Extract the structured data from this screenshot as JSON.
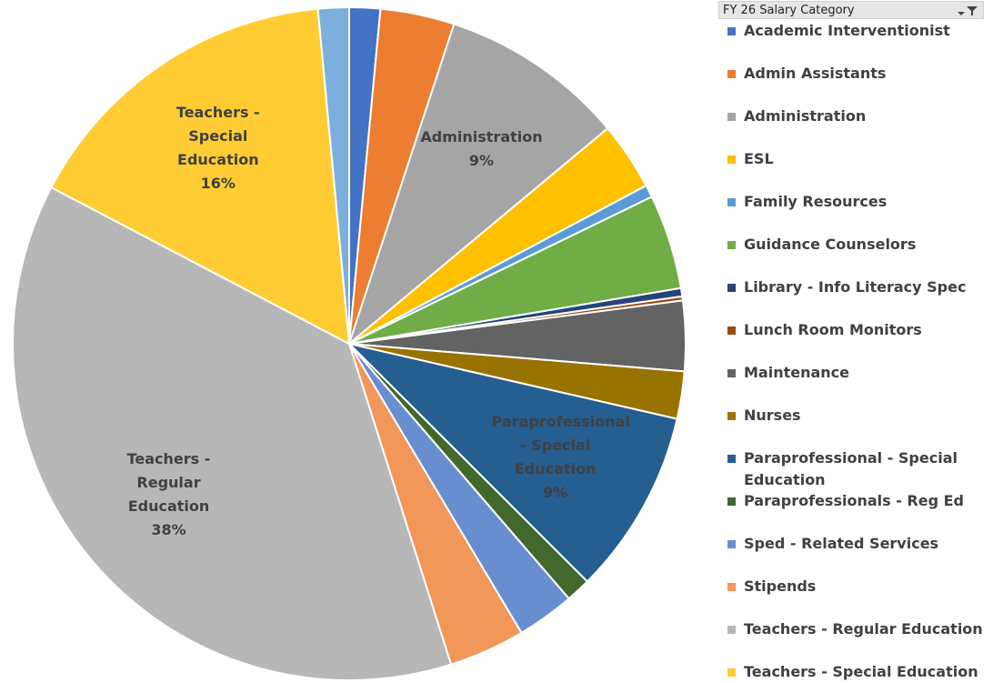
{
  "chart_data": {
    "type": "pie",
    "legend_title": "FY 26 Salary Category",
    "categories": [
      "Academic Interventionist",
      "Admin Assistants",
      "Administration",
      "ESL",
      "Family Resources",
      "Guidance Counselors",
      "Library -  Info Literacy Spec",
      "Lunch Room Monitors",
      "Maintenance",
      "Nurses",
      "Paraprofessional - Special Education",
      "Paraprofessionals - Reg Ed",
      "Sped - Related Services",
      "Stipends",
      "Teachers - Regular Education",
      "Teachers - Special Education",
      null
    ],
    "values": [
      1.5,
      3.6,
      9,
      3.3,
      0.6,
      4.6,
      0.4,
      0.2,
      3.4,
      2.3,
      9,
      1.2,
      2.8,
      3.7,
      38,
      16,
      1.5
    ],
    "value_labels": [
      null,
      null,
      "9%",
      null,
      null,
      null,
      null,
      null,
      null,
      null,
      "9%",
      null,
      null,
      null,
      "38%",
      "16%",
      null
    ],
    "colors": [
      "#4472c4",
      "#ed7d31",
      "#a5a5a5",
      "#ffc000",
      "#5b9bd5",
      "#70ad47",
      "#264478",
      "#9e480e",
      "#636363",
      "#997300",
      "#255e91",
      "#43682b",
      "#698ed0",
      "#f1975a",
      "#b7b7b7",
      "#ffcd33",
      "#7cafdd"
    ],
    "legend": "right"
  }
}
